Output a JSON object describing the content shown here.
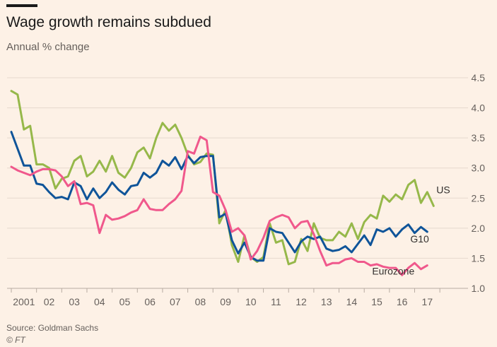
{
  "colors": {
    "background": "#fdf1e6",
    "gridline": "#e6d9ce",
    "g10": "#0f5499",
    "us": "#96b84a",
    "eurozone": "#f0588c",
    "text": "#66605c"
  },
  "chart_data": {
    "type": "line",
    "title": "Wage growth remains subdued",
    "subtitle": "Annual % change",
    "source": "Source: Goldman Sachs",
    "copyright": "© FT",
    "ylim": [
      1.0,
      4.5
    ],
    "xlim": [
      2000.5,
      2018.0
    ],
    "y_ticks": [
      1.0,
      1.5,
      2.0,
      2.5,
      3.0,
      3.5,
      4.0,
      4.5
    ],
    "y_tick_labels": [
      "1.0",
      "1.5",
      "2.0",
      "2.5",
      "3.0",
      "3.5",
      "4.0",
      "4.5"
    ],
    "x_ticks": [
      2001,
      2002,
      2003,
      2004,
      2005,
      2006,
      2007,
      2008,
      2009,
      2010,
      2011,
      2012,
      2013,
      2014,
      2015,
      2016,
      2017
    ],
    "x_tick_labels": [
      "2001",
      "02",
      "03",
      "04",
      "05",
      "06",
      "07",
      "08",
      "09",
      "10",
      "11",
      "12",
      "13",
      "14",
      "15",
      "16",
      "17"
    ],
    "series": [
      {
        "name": "US",
        "label": "US",
        "color_key": "us",
        "points": [
          [
            2000.5,
            4.28
          ],
          [
            2000.75,
            4.22
          ],
          [
            2001.0,
            3.64
          ],
          [
            2001.25,
            3.7
          ],
          [
            2001.5,
            3.06
          ],
          [
            2001.75,
            3.06
          ],
          [
            2002.0,
            3.0
          ],
          [
            2002.25,
            2.66
          ],
          [
            2002.5,
            2.82
          ],
          [
            2002.75,
            2.86
          ],
          [
            2003.0,
            3.12
          ],
          [
            2003.25,
            3.2
          ],
          [
            2003.5,
            2.86
          ],
          [
            2003.75,
            2.94
          ],
          [
            2004.0,
            3.12
          ],
          [
            2004.25,
            2.94
          ],
          [
            2004.5,
            3.2
          ],
          [
            2004.75,
            2.92
          ],
          [
            2005.0,
            2.84
          ],
          [
            2005.25,
            3.0
          ],
          [
            2005.5,
            3.26
          ],
          [
            2005.75,
            3.34
          ],
          [
            2006.0,
            3.16
          ],
          [
            2006.25,
            3.5
          ],
          [
            2006.5,
            3.75
          ],
          [
            2006.75,
            3.62
          ],
          [
            2007.0,
            3.72
          ],
          [
            2007.25,
            3.5
          ],
          [
            2007.5,
            3.22
          ],
          [
            2007.75,
            3.06
          ],
          [
            2008.0,
            3.1
          ],
          [
            2008.25,
            3.24
          ],
          [
            2008.5,
            3.22
          ],
          [
            2008.75,
            2.08
          ],
          [
            2009.0,
            2.3
          ],
          [
            2009.25,
            1.72
          ],
          [
            2009.5,
            1.44
          ],
          [
            2009.75,
            1.88
          ],
          [
            2010.0,
            1.52
          ],
          [
            2010.25,
            1.44
          ],
          [
            2010.5,
            1.52
          ],
          [
            2010.75,
            2.08
          ],
          [
            2011.0,
            1.76
          ],
          [
            2011.25,
            1.8
          ],
          [
            2011.5,
            1.4
          ],
          [
            2011.75,
            1.44
          ],
          [
            2012.0,
            1.82
          ],
          [
            2012.25,
            1.62
          ],
          [
            2012.5,
            2.08
          ],
          [
            2012.75,
            1.84
          ],
          [
            2013.0,
            1.8
          ],
          [
            2013.25,
            1.8
          ],
          [
            2013.5,
            1.94
          ],
          [
            2013.75,
            1.86
          ],
          [
            2014.0,
            2.08
          ],
          [
            2014.25,
            1.82
          ],
          [
            2014.5,
            2.1
          ],
          [
            2014.75,
            2.22
          ],
          [
            2015.0,
            2.16
          ],
          [
            2015.25,
            2.54
          ],
          [
            2015.5,
            2.44
          ],
          [
            2015.75,
            2.56
          ],
          [
            2016.0,
            2.48
          ],
          [
            2016.25,
            2.72
          ],
          [
            2016.5,
            2.8
          ],
          [
            2016.75,
            2.42
          ],
          [
            2017.0,
            2.6
          ],
          [
            2017.25,
            2.37
          ]
        ]
      },
      {
        "name": "G10",
        "label": "G10",
        "color_key": "g10",
        "points": [
          [
            2000.5,
            3.6
          ],
          [
            2000.75,
            3.32
          ],
          [
            2001.0,
            3.04
          ],
          [
            2001.25,
            3.04
          ],
          [
            2001.5,
            2.74
          ],
          [
            2001.75,
            2.72
          ],
          [
            2002.0,
            2.6
          ],
          [
            2002.25,
            2.5
          ],
          [
            2002.5,
            2.52
          ],
          [
            2002.75,
            2.48
          ],
          [
            2003.0,
            2.76
          ],
          [
            2003.25,
            2.7
          ],
          [
            2003.5,
            2.48
          ],
          [
            2003.75,
            2.66
          ],
          [
            2004.0,
            2.5
          ],
          [
            2004.25,
            2.6
          ],
          [
            2004.5,
            2.76
          ],
          [
            2004.75,
            2.64
          ],
          [
            2005.0,
            2.56
          ],
          [
            2005.25,
            2.7
          ],
          [
            2005.5,
            2.72
          ],
          [
            2005.75,
            2.92
          ],
          [
            2006.0,
            2.84
          ],
          [
            2006.25,
            2.92
          ],
          [
            2006.5,
            3.12
          ],
          [
            2006.75,
            3.04
          ],
          [
            2007.0,
            3.18
          ],
          [
            2007.25,
            2.98
          ],
          [
            2007.5,
            3.2
          ],
          [
            2007.75,
            3.08
          ],
          [
            2008.0,
            3.18
          ],
          [
            2008.25,
            3.2
          ],
          [
            2008.5,
            3.2
          ],
          [
            2008.75,
            2.18
          ],
          [
            2009.0,
            2.24
          ],
          [
            2009.25,
            1.8
          ],
          [
            2009.5,
            1.58
          ],
          [
            2009.75,
            1.76
          ],
          [
            2010.0,
            1.52
          ],
          [
            2010.25,
            1.46
          ],
          [
            2010.5,
            1.46
          ],
          [
            2010.75,
            2.0
          ],
          [
            2011.0,
            1.94
          ],
          [
            2011.25,
            1.92
          ],
          [
            2011.5,
            1.76
          ],
          [
            2011.75,
            1.6
          ],
          [
            2012.0,
            1.78
          ],
          [
            2012.25,
            1.86
          ],
          [
            2012.5,
            1.82
          ],
          [
            2012.75,
            1.86
          ],
          [
            2013.0,
            1.66
          ],
          [
            2013.25,
            1.62
          ],
          [
            2013.5,
            1.64
          ],
          [
            2013.75,
            1.7
          ],
          [
            2014.0,
            1.6
          ],
          [
            2014.25,
            1.74
          ],
          [
            2014.5,
            1.88
          ],
          [
            2014.75,
            1.72
          ],
          [
            2015.0,
            1.98
          ],
          [
            2015.25,
            1.94
          ],
          [
            2015.5,
            2.0
          ],
          [
            2015.75,
            1.86
          ],
          [
            2016.0,
            1.98
          ],
          [
            2016.25,
            2.06
          ],
          [
            2016.5,
            1.92
          ],
          [
            2016.75,
            2.02
          ],
          [
            2017.0,
            1.94
          ]
        ]
      },
      {
        "name": "Eurozone",
        "label": "Eurozone",
        "color_key": "eurozone",
        "points": [
          [
            2000.5,
            3.02
          ],
          [
            2000.75,
            2.96
          ],
          [
            2001.0,
            2.92
          ],
          [
            2001.25,
            2.88
          ],
          [
            2001.5,
            2.94
          ],
          [
            2001.75,
            2.98
          ],
          [
            2002.0,
            2.98
          ],
          [
            2002.25,
            2.96
          ],
          [
            2002.5,
            2.86
          ],
          [
            2002.75,
            2.7
          ],
          [
            2003.0,
            2.78
          ],
          [
            2003.25,
            2.4
          ],
          [
            2003.5,
            2.42
          ],
          [
            2003.75,
            2.38
          ],
          [
            2004.0,
            1.92
          ],
          [
            2004.25,
            2.22
          ],
          [
            2004.5,
            2.14
          ],
          [
            2004.75,
            2.16
          ],
          [
            2005.0,
            2.2
          ],
          [
            2005.25,
            2.26
          ],
          [
            2005.5,
            2.3
          ],
          [
            2005.75,
            2.48
          ],
          [
            2006.0,
            2.32
          ],
          [
            2006.25,
            2.3
          ],
          [
            2006.5,
            2.3
          ],
          [
            2006.75,
            2.4
          ],
          [
            2007.0,
            2.48
          ],
          [
            2007.25,
            2.62
          ],
          [
            2007.5,
            3.28
          ],
          [
            2007.75,
            3.24
          ],
          [
            2008.0,
            3.52
          ],
          [
            2008.25,
            3.46
          ],
          [
            2008.5,
            2.6
          ],
          [
            2008.75,
            2.54
          ],
          [
            2009.0,
            2.3
          ],
          [
            2009.25,
            1.94
          ],
          [
            2009.5,
            2.0
          ],
          [
            2009.75,
            1.88
          ],
          [
            2010.0,
            1.48
          ],
          [
            2010.25,
            1.62
          ],
          [
            2010.5,
            1.84
          ],
          [
            2010.75,
            2.12
          ],
          [
            2011.0,
            2.18
          ],
          [
            2011.25,
            2.22
          ],
          [
            2011.5,
            2.18
          ],
          [
            2011.75,
            2.0
          ],
          [
            2012.0,
            2.1
          ],
          [
            2012.25,
            2.12
          ],
          [
            2012.5,
            1.9
          ],
          [
            2012.75,
            1.62
          ],
          [
            2013.0,
            1.38
          ],
          [
            2013.25,
            1.42
          ],
          [
            2013.5,
            1.42
          ],
          [
            2013.75,
            1.48
          ],
          [
            2014.0,
            1.5
          ],
          [
            2014.25,
            1.44
          ],
          [
            2014.5,
            1.44
          ],
          [
            2014.75,
            1.38
          ],
          [
            2015.0,
            1.4
          ],
          [
            2015.25,
            1.36
          ],
          [
            2015.5,
            1.34
          ],
          [
            2015.75,
            1.34
          ],
          [
            2016.0,
            1.22
          ],
          [
            2016.25,
            1.34
          ],
          [
            2016.5,
            1.42
          ],
          [
            2016.75,
            1.32
          ],
          [
            2017.0,
            1.38
          ]
        ]
      }
    ]
  }
}
